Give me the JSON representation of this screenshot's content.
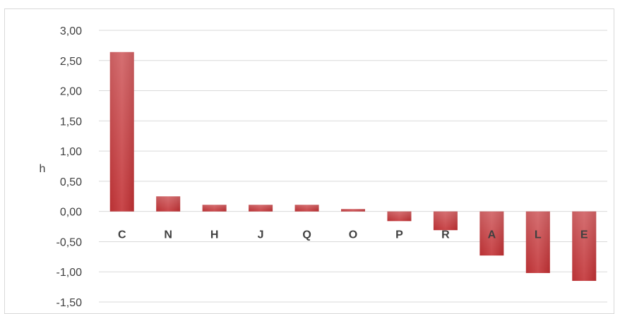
{
  "chart_data": {
    "type": "bar",
    "title": "",
    "xlabel": "",
    "ylabel": "h",
    "ylim": [
      -1.5,
      3.0
    ],
    "ytick_step": 0.5,
    "ytick_labels": [
      "3,00",
      "2,50",
      "2,00",
      "1,50",
      "1,00",
      "0,50",
      "0,00",
      "-0,50",
      "-1,00",
      "-1,50"
    ],
    "grid": true,
    "legend": "none",
    "categories": [
      "C",
      "N",
      "H",
      "J",
      "Q",
      "O",
      "P",
      "R",
      "A",
      "L",
      "E"
    ],
    "values": [
      2.64,
      0.25,
      0.11,
      0.11,
      0.11,
      0.04,
      -0.16,
      -0.31,
      -0.73,
      -1.02,
      -1.15
    ],
    "colors": {
      "bar": "#c0393b",
      "bar_light": "#d46a6a",
      "grid": "#d9d9d9",
      "text": "#404040"
    }
  }
}
